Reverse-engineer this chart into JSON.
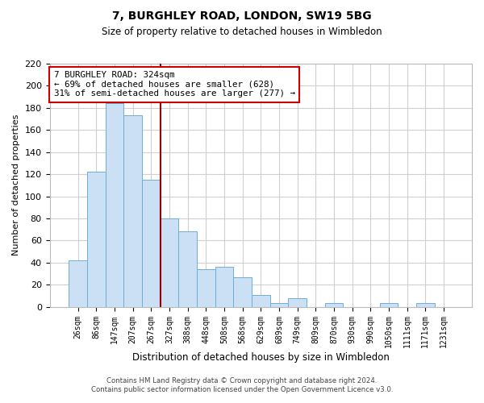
{
  "title": "7, BURGHLEY ROAD, LONDON, SW19 5BG",
  "subtitle": "Size of property relative to detached houses in Wimbledon",
  "xlabel": "Distribution of detached houses by size in Wimbledon",
  "ylabel": "Number of detached properties",
  "footer_line1": "Contains HM Land Registry data © Crown copyright and database right 2024.",
  "footer_line2": "Contains public sector information licensed under the Open Government Licence v3.0.",
  "bar_labels": [
    "26sqm",
    "86sqm",
    "147sqm",
    "207sqm",
    "267sqm",
    "327sqm",
    "388sqm",
    "448sqm",
    "508sqm",
    "568sqm",
    "629sqm",
    "689sqm",
    "749sqm",
    "809sqm",
    "870sqm",
    "930sqm",
    "990sqm",
    "1050sqm",
    "1111sqm",
    "1171sqm",
    "1231sqm"
  ],
  "bar_values": [
    42,
    122,
    184,
    173,
    115,
    80,
    68,
    34,
    36,
    27,
    11,
    3,
    8,
    0,
    3,
    0,
    0,
    3,
    0,
    3,
    0
  ],
  "bar_color": "#cce0f5",
  "bar_edge_color": "#6baed6",
  "ann_line1": "7 BURGHLEY ROAD: 324sqm",
  "ann_line2": "← 69% of detached houses are smaller (628)",
  "ann_line3": "31% of semi-detached houses are larger (277) →",
  "ann_box_facecolor": "#ffffff",
  "ann_box_edgecolor": "#cc0000",
  "vline_color": "#990000",
  "grid_color": "#d0d0d0",
  "background_color": "#ffffff",
  "ylim": [
    0,
    220
  ],
  "yticks": [
    0,
    20,
    40,
    60,
    80,
    100,
    120,
    140,
    160,
    180,
    200,
    220
  ],
  "vline_idx": 4.5
}
